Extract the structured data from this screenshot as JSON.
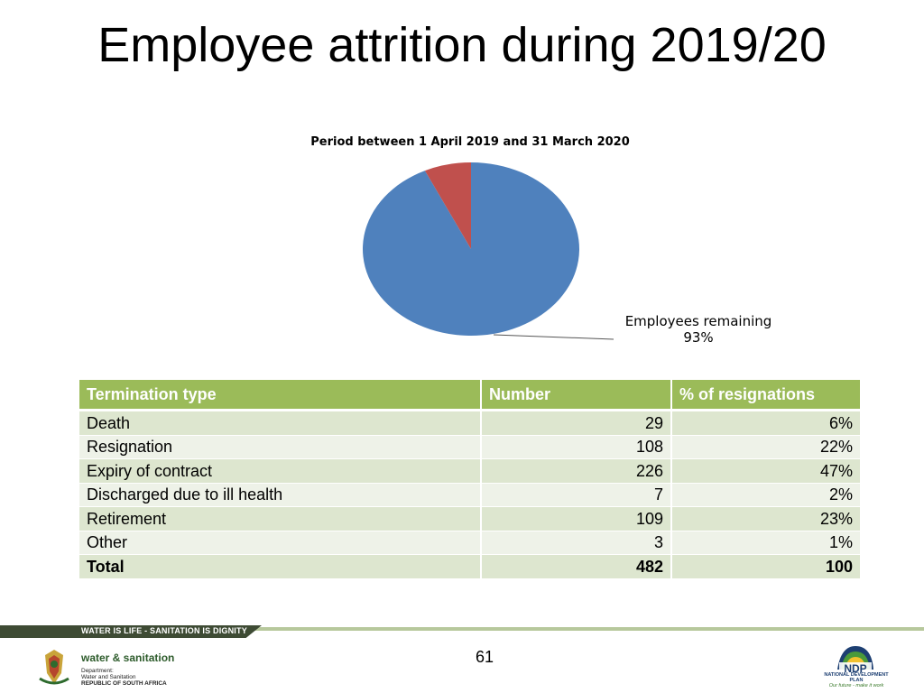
{
  "slide": {
    "title": "Employee attrition during 2019/20",
    "page_number": "61"
  },
  "chart_data": {
    "type": "pie",
    "title": "Period between 1 April 2019 and 31 March 2020",
    "slices": [
      {
        "name": "Employees remaining",
        "value": 93,
        "label": "Employees remaining",
        "value_label": "93%",
        "color": "#4f81bd"
      },
      {
        "name": "",
        "value": 7,
        "label": "",
        "value_label": "",
        "color": "#c0504d"
      }
    ]
  },
  "table": {
    "headers": [
      "Termination type",
      "Number",
      "% of resignations"
    ],
    "rows": [
      [
        "Death",
        "29",
        "6%"
      ],
      [
        "Resignation",
        "108",
        "22%"
      ],
      [
        "Expiry of contract",
        "226",
        "47%"
      ],
      [
        "Discharged due to ill health",
        "7",
        "2%"
      ],
      [
        "Retirement",
        "109",
        "23%"
      ],
      [
        "Other",
        "3",
        "1%"
      ]
    ],
    "total": [
      "Total",
      "482",
      "100"
    ]
  },
  "footer": {
    "slogan": "WATER IS LIFE - SANITATION IS DIGNITY",
    "dept_name": "water & sanitation",
    "dept_lines": [
      "Department:",
      "Water and Sanitation",
      "REPUBLIC OF SOUTH AFRICA"
    ],
    "ndp_lines": [
      "NATIONAL DEVELOPMENT PLAN",
      "Our future - make it work"
    ]
  },
  "colors": {
    "header_green": "#9bbb59",
    "row_odd": "#dde6cf",
    "row_even": "#eef2e8"
  }
}
